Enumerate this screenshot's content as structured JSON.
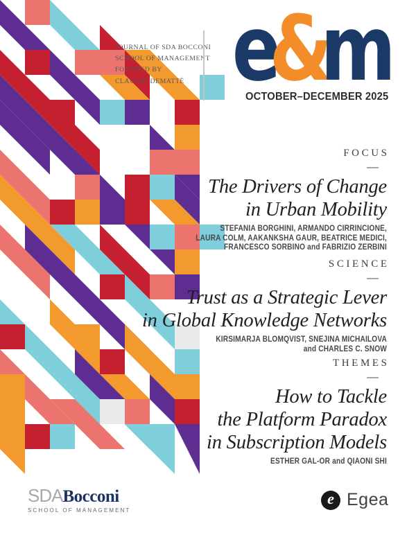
{
  "masthead": {
    "journal_lines": [
      "JOURNAL OF SDA BOCCONI",
      "SCHOOL OF MANAGEMENT",
      "FOUNDED BY",
      "CLAUDIO DEMATTÉ"
    ],
    "logo": {
      "e": "e",
      "amp": "&",
      "m": "m"
    },
    "issue": "OCTOBER–DECEMBER 2025"
  },
  "sections": [
    {
      "label": "FOCUS",
      "title_lines": [
        "The Drivers of Change",
        "in Urban Mobility"
      ],
      "author_lines": [
        "STEFANIA BORGHINI, ARMANDO CIRRINCIONE,",
        "LAURA COLM, AAKANKSHA GAUR, BEATRICE MEDICI,",
        "FRANCESCO SORBINO and FABRIZIO ZERBINI"
      ]
    },
    {
      "label": "SCIENCE",
      "title_lines": [
        "Trust as a Strategic Lever",
        "in Global Knowledge Networks"
      ],
      "author_lines": [
        "KIRSIMARJA BLOMQVIST, SNEJINA MICHAILOVA",
        "and CHARLES C. SNOW"
      ]
    },
    {
      "label": "THEMES",
      "title_lines": [
        "How to Tackle",
        "the Platform Paradox",
        "in Subscription Models"
      ],
      "author_lines": [
        "ESTHER GAL-OR and QIAONI SHI"
      ]
    }
  ],
  "footer": {
    "sda": {
      "sda": "SDA",
      "bocconi": "Bocconi",
      "school": "SCHOOL OF MANAGEMENT"
    },
    "egea": {
      "mark": "e",
      "name": "Egea"
    }
  },
  "colors": {
    "brand": {
      "navy": "#1B3A67",
      "orange": "#F28D2A",
      "title_ink": "#202022",
      "label_ink": "#3E3E40",
      "authors_ink": "#48484A",
      "journal_ink": "#58585A",
      "date_ink": "#2D2D2F",
      "sda_navy": "#1B3262",
      "sda_gray": "#A7A9AC",
      "school_gray": "#66686B",
      "egea_ink": "#414042",
      "egea_black": "#1A1A1A",
      "divider_gray": "#C4C5C7",
      "dash_gray": "#A6A8AB"
    },
    "pattern": {
      "purple": "#5E2D91",
      "red": "#C4202F",
      "cyan": "#7FCEDC",
      "salmon": "#EC746E",
      "orange": "#F29A2E",
      "lightgray": "#E9EAEB"
    }
  }
}
